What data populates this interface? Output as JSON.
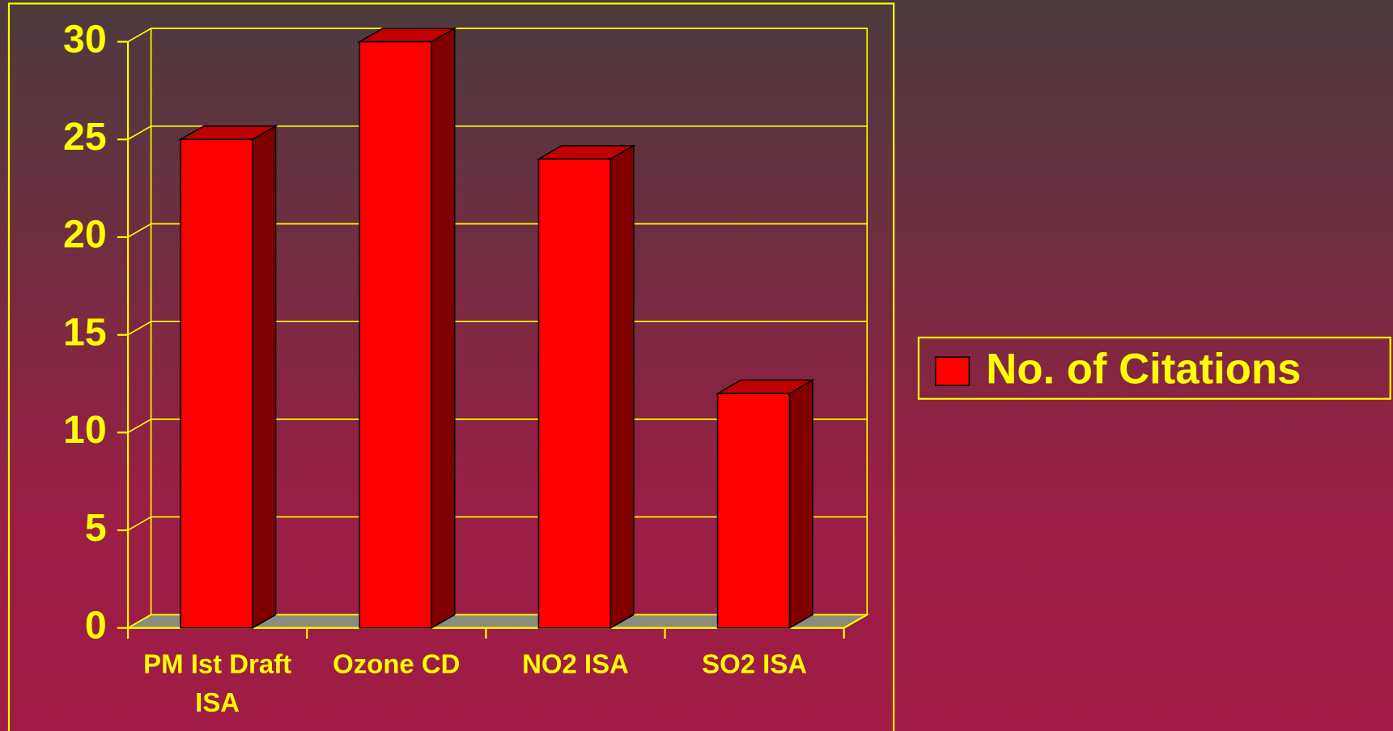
{
  "chart_data": {
    "type": "bar3d",
    "categories": [
      "PM Ist Draft ISA",
      "Ozone CD",
      "NO2 ISA",
      "SO2 ISA"
    ],
    "series": [
      {
        "name": "No. of Citations",
        "color": "#ff0000",
        "values": [
          25,
          30,
          24,
          12
        ]
      }
    ],
    "ylim": [
      0,
      30
    ],
    "yticks": [
      0,
      5,
      10,
      15,
      20,
      25,
      30
    ],
    "grid": true,
    "legend": "right"
  }
}
